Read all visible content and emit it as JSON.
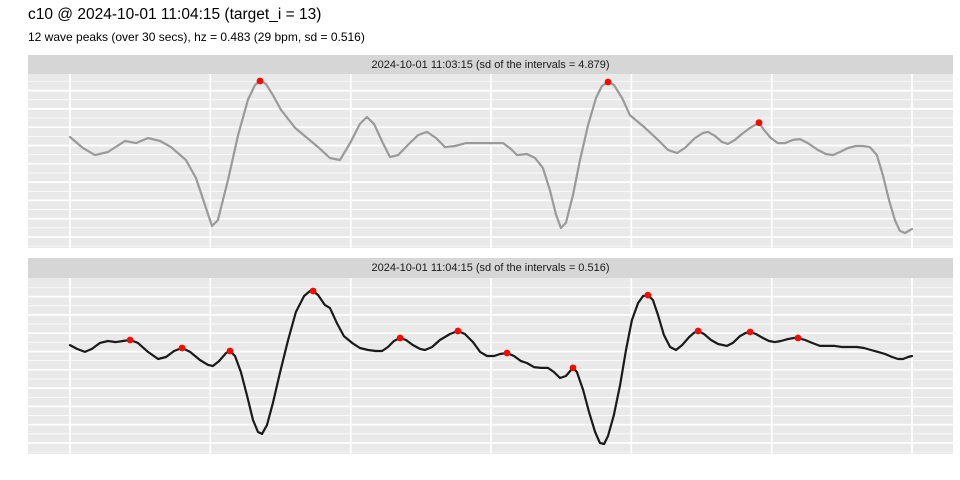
{
  "header": {
    "title": "c10 @ 2024-10-01 11:04:15 (target_i = 13)",
    "subtitle": "12 wave peaks (over 30 secs), hz = 0.483 (29 bpm, sd = 0.516)"
  },
  "colors": {
    "page_bg": "#ffffff",
    "panel_bg": "#e9e9e9",
    "strip_bg": "#d6d6d6",
    "grid_major": "#ffffff",
    "wave_top_panel": "#9a9a9a",
    "wave_bottom_panel": "#1a1a1a",
    "peak_dot": "#f40b00"
  },
  "chart_data": [
    {
      "type": "line",
      "title": "2024-10-01 11:03:15 (sd of the intervals = 4.879)",
      "xlabel": "",
      "ylabel": "",
      "x_unit": "seconds",
      "xlim": [
        0,
        30
      ],
      "ylim": [
        0,
        1
      ],
      "x_gridline_step": 5,
      "grid": "white major gridlines on gray panel, no axis tick labels",
      "legend": "none",
      "line_color_key": "wave_top_panel",
      "peak_count": 3,
      "points": [
        [
          0,
          0.638
        ],
        [
          0.46,
          0.575
        ],
        [
          0.89,
          0.534
        ],
        [
          1.35,
          0.552
        ],
        [
          1.96,
          0.615
        ],
        [
          2.35,
          0.603
        ],
        [
          2.78,
          0.632
        ],
        [
          3.21,
          0.615
        ],
        [
          3.6,
          0.58
        ],
        [
          4.13,
          0.506
        ],
        [
          4.49,
          0.402
        ],
        [
          4.81,
          0.247
        ],
        [
          5.06,
          0.126
        ],
        [
          5.27,
          0.161
        ],
        [
          5.63,
          0.391
        ],
        [
          5.99,
          0.649
        ],
        [
          6.34,
          0.851
        ],
        [
          6.59,
          0.937
        ],
        [
          6.77,
          0.96
        ],
        [
          6.98,
          0.943
        ],
        [
          7.23,
          0.879
        ],
        [
          7.52,
          0.793
        ],
        [
          8.02,
          0.69
        ],
        [
          8.41,
          0.638
        ],
        [
          8.84,
          0.58
        ],
        [
          9.26,
          0.517
        ],
        [
          9.62,
          0.506
        ],
        [
          9.98,
          0.603
        ],
        [
          10.33,
          0.713
        ],
        [
          10.58,
          0.753
        ],
        [
          10.83,
          0.713
        ],
        [
          11.15,
          0.603
        ],
        [
          11.4,
          0.523
        ],
        [
          11.69,
          0.534
        ],
        [
          12.04,
          0.592
        ],
        [
          12.4,
          0.649
        ],
        [
          12.72,
          0.667
        ],
        [
          13.04,
          0.632
        ],
        [
          13.36,
          0.58
        ],
        [
          13.72,
          0.586
        ],
        [
          14.11,
          0.603
        ],
        [
          14.61,
          0.603
        ],
        [
          15.03,
          0.603
        ],
        [
          15.43,
          0.603
        ],
        [
          15.71,
          0.569
        ],
        [
          15.93,
          0.534
        ],
        [
          16.28,
          0.54
        ],
        [
          16.57,
          0.517
        ],
        [
          16.85,
          0.46
        ],
        [
          17.1,
          0.333
        ],
        [
          17.32,
          0.19
        ],
        [
          17.49,
          0.115
        ],
        [
          17.67,
          0.144
        ],
        [
          17.92,
          0.305
        ],
        [
          18.17,
          0.506
        ],
        [
          18.46,
          0.707
        ],
        [
          18.74,
          0.862
        ],
        [
          18.95,
          0.931
        ],
        [
          19.17,
          0.954
        ],
        [
          19.38,
          0.937
        ],
        [
          19.67,
          0.862
        ],
        [
          19.95,
          0.764
        ],
        [
          20.49,
          0.69
        ],
        [
          20.95,
          0.621
        ],
        [
          21.31,
          0.563
        ],
        [
          21.63,
          0.546
        ],
        [
          21.91,
          0.575
        ],
        [
          22.27,
          0.632
        ],
        [
          22.55,
          0.661
        ],
        [
          22.73,
          0.667
        ],
        [
          22.98,
          0.644
        ],
        [
          23.23,
          0.609
        ],
        [
          23.44,
          0.598
        ],
        [
          23.69,
          0.621
        ],
        [
          23.94,
          0.655
        ],
        [
          24.23,
          0.69
        ],
        [
          24.55,
          0.72
        ],
        [
          24.72,
          0.68
        ],
        [
          24.97,
          0.632
        ],
        [
          25.22,
          0.603
        ],
        [
          25.47,
          0.603
        ],
        [
          25.76,
          0.621
        ],
        [
          26.01,
          0.626
        ],
        [
          26.29,
          0.603
        ],
        [
          26.65,
          0.563
        ],
        [
          26.93,
          0.54
        ],
        [
          27.18,
          0.534
        ],
        [
          27.43,
          0.552
        ],
        [
          27.72,
          0.575
        ],
        [
          28,
          0.586
        ],
        [
          28.25,
          0.586
        ],
        [
          28.5,
          0.58
        ],
        [
          28.75,
          0.534
        ],
        [
          28.96,
          0.42
        ],
        [
          29.18,
          0.276
        ],
        [
          29.39,
          0.161
        ],
        [
          29.57,
          0.098
        ],
        [
          29.75,
          0.086
        ],
        [
          29.93,
          0.103
        ],
        [
          30,
          0.109
        ]
      ],
      "peaks": [
        [
          6.77,
          0.96
        ],
        [
          19.17,
          0.954
        ],
        [
          24.55,
          0.72
        ]
      ]
    },
    {
      "type": "line",
      "title": "2024-10-01 11:04:15 (sd of the intervals = 0.516)",
      "xlabel": "",
      "ylabel": "",
      "x_unit": "seconds",
      "xlim": [
        0,
        30
      ],
      "ylim": [
        0,
        1
      ],
      "x_gridline_step": 5,
      "grid": "white major gridlines on gray panel, no axis tick labels",
      "legend": "none",
      "line_color_key": "wave_bottom_panel",
      "peak_count": 12,
      "points": [
        [
          0,
          0.619
        ],
        [
          0.25,
          0.597
        ],
        [
          0.53,
          0.58
        ],
        [
          0.78,
          0.597
        ],
        [
          1.07,
          0.631
        ],
        [
          1.35,
          0.642
        ],
        [
          1.64,
          0.636
        ],
        [
          1.89,
          0.642
        ],
        [
          2.14,
          0.648
        ],
        [
          2.42,
          0.631
        ],
        [
          2.78,
          0.58
        ],
        [
          3.14,
          0.54
        ],
        [
          3.42,
          0.551
        ],
        [
          3.71,
          0.585
        ],
        [
          3.99,
          0.602
        ],
        [
          4.28,
          0.58
        ],
        [
          4.63,
          0.534
        ],
        [
          4.92,
          0.506
        ],
        [
          5.09,
          0.5
        ],
        [
          5.31,
          0.528
        ],
        [
          5.56,
          0.574
        ],
        [
          5.7,
          0.585
        ],
        [
          5.88,
          0.557
        ],
        [
          6.09,
          0.466
        ],
        [
          6.31,
          0.33
        ],
        [
          6.52,
          0.193
        ],
        [
          6.7,
          0.125
        ],
        [
          6.84,
          0.114
        ],
        [
          7.02,
          0.165
        ],
        [
          7.23,
          0.29
        ],
        [
          7.48,
          0.46
        ],
        [
          7.77,
          0.648
        ],
        [
          8.05,
          0.807
        ],
        [
          8.34,
          0.898
        ],
        [
          8.55,
          0.926
        ],
        [
          8.66,
          0.926
        ],
        [
          8.84,
          0.903
        ],
        [
          9.08,
          0.847
        ],
        [
          9.26,
          0.83
        ],
        [
          9.51,
          0.744
        ],
        [
          9.76,
          0.67
        ],
        [
          10.05,
          0.631
        ],
        [
          10.33,
          0.602
        ],
        [
          10.62,
          0.591
        ],
        [
          10.9,
          0.585
        ],
        [
          11.12,
          0.585
        ],
        [
          11.33,
          0.608
        ],
        [
          11.54,
          0.642
        ],
        [
          11.76,
          0.659
        ],
        [
          11.97,
          0.648
        ],
        [
          12.22,
          0.619
        ],
        [
          12.47,
          0.597
        ],
        [
          12.65,
          0.591
        ],
        [
          12.9,
          0.608
        ],
        [
          13.18,
          0.648
        ],
        [
          13.54,
          0.682
        ],
        [
          13.82,
          0.699
        ],
        [
          14.07,
          0.682
        ],
        [
          14.36,
          0.636
        ],
        [
          14.61,
          0.58
        ],
        [
          14.86,
          0.557
        ],
        [
          15.11,
          0.557
        ],
        [
          15.32,
          0.568
        ],
        [
          15.57,
          0.574
        ],
        [
          15.82,
          0.557
        ],
        [
          16.07,
          0.528
        ],
        [
          16.28,
          0.517
        ],
        [
          16.53,
          0.494
        ],
        [
          16.78,
          0.489
        ],
        [
          17.03,
          0.489
        ],
        [
          17.24,
          0.466
        ],
        [
          17.46,
          0.432
        ],
        [
          17.67,
          0.443
        ],
        [
          17.85,
          0.477
        ],
        [
          17.92,
          0.489
        ],
        [
          18.06,
          0.466
        ],
        [
          18.28,
          0.364
        ],
        [
          18.49,
          0.239
        ],
        [
          18.71,
          0.125
        ],
        [
          18.88,
          0.063
        ],
        [
          19.03,
          0.057
        ],
        [
          19.17,
          0.102
        ],
        [
          19.38,
          0.222
        ],
        [
          19.6,
          0.392
        ],
        [
          19.81,
          0.591
        ],
        [
          20.02,
          0.761
        ],
        [
          20.24,
          0.858
        ],
        [
          20.42,
          0.898
        ],
        [
          20.59,
          0.903
        ],
        [
          20.77,
          0.875
        ],
        [
          20.95,
          0.79
        ],
        [
          21.16,
          0.676
        ],
        [
          21.38,
          0.608
        ],
        [
          21.59,
          0.591
        ],
        [
          21.81,
          0.619
        ],
        [
          22.06,
          0.665
        ],
        [
          22.23,
          0.688
        ],
        [
          22.38,
          0.699
        ],
        [
          22.59,
          0.682
        ],
        [
          22.84,
          0.648
        ],
        [
          23.09,
          0.625
        ],
        [
          23.41,
          0.614
        ],
        [
          23.62,
          0.631
        ],
        [
          23.87,
          0.67
        ],
        [
          24.08,
          0.688
        ],
        [
          24.23,
          0.693
        ],
        [
          24.44,
          0.682
        ],
        [
          24.69,
          0.659
        ],
        [
          24.9,
          0.642
        ],
        [
          25.12,
          0.636
        ],
        [
          25.33,
          0.642
        ],
        [
          25.58,
          0.653
        ],
        [
          25.79,
          0.659
        ],
        [
          25.94,
          0.659
        ],
        [
          26.19,
          0.648
        ],
        [
          26.44,
          0.631
        ],
        [
          26.72,
          0.614
        ],
        [
          27,
          0.614
        ],
        [
          27.25,
          0.614
        ],
        [
          27.5,
          0.608
        ],
        [
          27.79,
          0.608
        ],
        [
          28.04,
          0.608
        ],
        [
          28.29,
          0.602
        ],
        [
          28.54,
          0.591
        ],
        [
          28.79,
          0.58
        ],
        [
          29.04,
          0.568
        ],
        [
          29.29,
          0.551
        ],
        [
          29.5,
          0.54
        ],
        [
          29.68,
          0.54
        ],
        [
          29.86,
          0.551
        ],
        [
          30,
          0.557
        ]
      ],
      "peaks": [
        [
          2.14,
          0.648
        ],
        [
          3.99,
          0.602
        ],
        [
          5.7,
          0.585
        ],
        [
          8.66,
          0.926
        ],
        [
          11.76,
          0.659
        ],
        [
          13.82,
          0.699
        ],
        [
          15.57,
          0.574
        ],
        [
          17.92,
          0.489
        ],
        [
          20.59,
          0.903
        ],
        [
          22.38,
          0.699
        ],
        [
          24.23,
          0.693
        ],
        [
          25.94,
          0.659
        ]
      ]
    }
  ]
}
